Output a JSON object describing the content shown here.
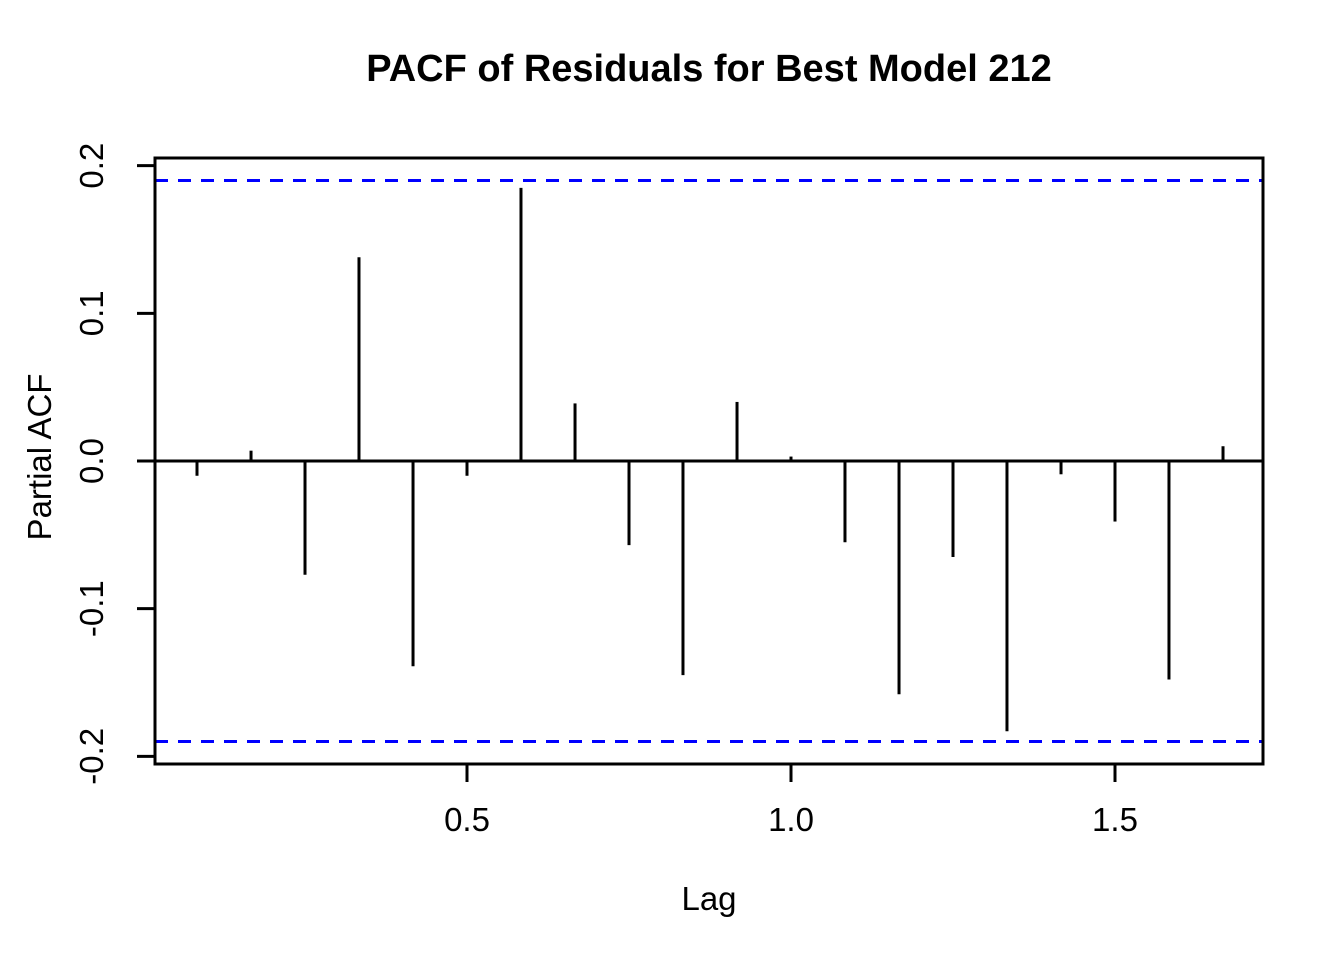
{
  "chart_data": {
    "type": "stem",
    "title": "PACF of Residuals for Best Model 212",
    "xlabel": "Lag",
    "ylabel": "Partial ACF",
    "spike_color": "#000000",
    "axis_color": "#000000",
    "background_color": "#ffffff",
    "confidence_band": {
      "value": 0.19,
      "color": "#0000ff",
      "style": "dashed"
    },
    "x_ticks": {
      "values": [
        0.5,
        1.0,
        1.5
      ],
      "labels": [
        "0.5",
        "1.0",
        "1.5"
      ]
    },
    "y_ticks": {
      "values": [
        -0.2,
        -0.1,
        0.0,
        0.1,
        0.2
      ],
      "labels": [
        "-0.2",
        "-0.1",
        "0.0",
        "0.1",
        "0.2"
      ]
    },
    "xlim": [
      0.0185,
      1.7284
    ],
    "ylim": [
      -0.2052,
      0.2052
    ],
    "grid": false,
    "frame": true,
    "legend": null,
    "lags": [
      0.0833,
      0.1667,
      0.25,
      0.3333,
      0.4167,
      0.5,
      0.5833,
      0.6667,
      0.75,
      0.8333,
      0.9167,
      1.0,
      1.0833,
      1.1667,
      1.25,
      1.3333,
      1.4167,
      1.5,
      1.5833,
      1.6667
    ],
    "values": [
      -0.01,
      0.007,
      -0.077,
      0.138,
      -0.139,
      -0.01,
      0.185,
      0.039,
      -0.057,
      -0.145,
      0.04,
      0.003,
      -0.055,
      -0.158,
      -0.065,
      -0.183,
      -0.009,
      -0.041,
      -0.148,
      0.01
    ]
  }
}
